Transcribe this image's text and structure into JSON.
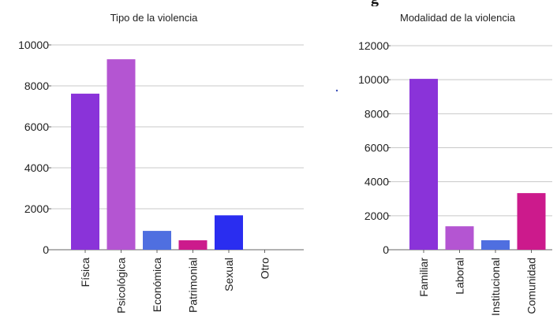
{
  "header_fragment": "g",
  "chart_data": [
    {
      "type": "bar",
      "title": "Tipo de la violencia",
      "categories": [
        "Física",
        "Psicológica",
        "Económica",
        "Patrimonial",
        "Sexual",
        "Otro"
      ],
      "values": [
        7620,
        9300,
        920,
        460,
        1680,
        0
      ],
      "colors": [
        "#8a33d9",
        "#b455d2",
        "#4f6fe0",
        "#cc1a8c",
        "#2a2df0",
        "#ffffff"
      ],
      "yticks": [
        0,
        2000,
        4000,
        6000,
        8000,
        10000
      ],
      "ylim": [
        0,
        10000
      ],
      "grid": true,
      "xlabel": "",
      "ylabel": ""
    },
    {
      "type": "bar",
      "title": "Modalidad de la violencia",
      "categories": [
        "Familiar",
        "Laboral",
        "Institucional",
        "Comunidad"
      ],
      "values": [
        10050,
        1380,
        560,
        3330
      ],
      "colors": [
        "#8a33d9",
        "#b455d2",
        "#4f6fe0",
        "#cc1a8c"
      ],
      "yticks": [
        0,
        2000,
        4000,
        6000,
        8000,
        10000,
        12000
      ],
      "ylim": [
        0,
        12000
      ],
      "grid": true,
      "xlabel": "",
      "ylabel": ""
    }
  ]
}
